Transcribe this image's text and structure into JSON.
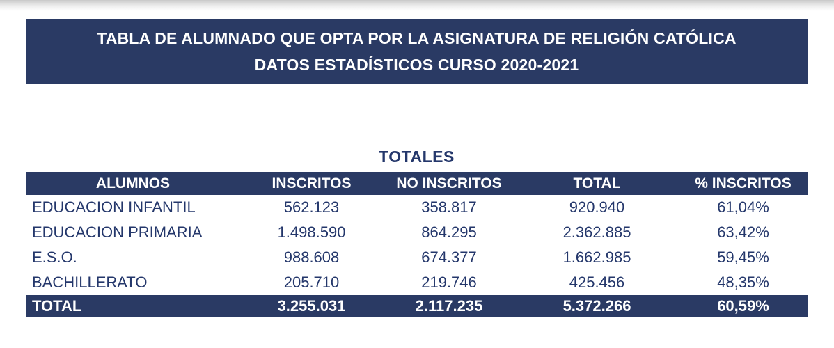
{
  "page": {
    "title_line1": "TABLA DE ALUMNADO QUE OPTA POR LA ASIGNATURA DE RELIGIÓN CATÓLICA",
    "title_line2": "DATOS ESTADÍSTICOS CURSO 2020-2021",
    "section_title": "TOTALES"
  },
  "colors": {
    "navy_fill": "#2A3A64",
    "navy_text": "#24376B",
    "header_text": "#FFFFFF"
  },
  "table": {
    "columns": [
      "ALUMNOS",
      "INSCRITOS",
      "NO INSCRITOS",
      "TOTAL",
      "% INSCRITOS"
    ],
    "rows": [
      {
        "label": "EDUCACION INFANTIL",
        "inscritos": "562.123",
        "no_inscritos": "358.817",
        "total": "920.940",
        "pct": "61,04%"
      },
      {
        "label": "EDUCACION PRIMARIA",
        "inscritos": "1.498.590",
        "no_inscritos": "864.295",
        "total": "2.362.885",
        "pct": "63,42%"
      },
      {
        "label": "E.S.O.",
        "inscritos": "988.608",
        "no_inscritos": "674.377",
        "total": "1.662.985",
        "pct": "59,45%"
      },
      {
        "label": "BACHILLERATO",
        "inscritos": "205.710",
        "no_inscritos": "219.746",
        "total": "425.456",
        "pct": "48,35%"
      }
    ],
    "total_row": {
      "label": "TOTAL",
      "inscritos": "3.255.031",
      "no_inscritos": "2.117.235",
      "total": "5.372.266",
      "pct": "60,59%"
    }
  }
}
